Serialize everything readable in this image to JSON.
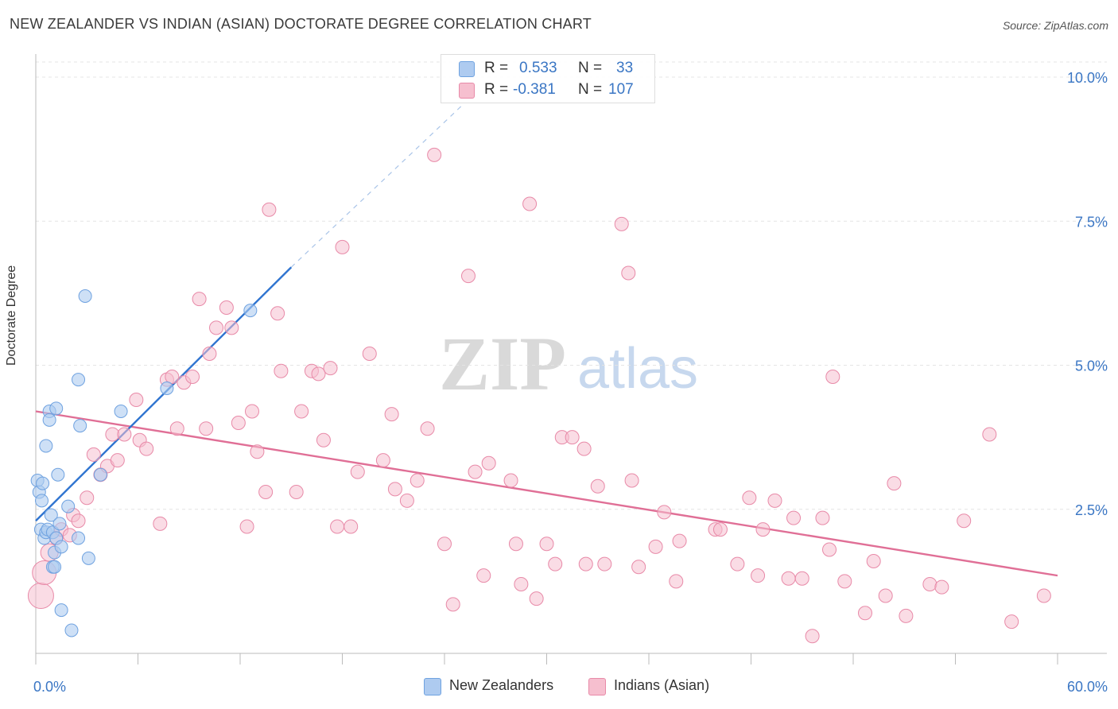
{
  "header": {
    "title": "NEW ZEALANDER VS INDIAN (ASIAN) DOCTORATE DEGREE CORRELATION CHART",
    "source": "Source: ZipAtlas.com"
  },
  "watermark": {
    "zip": "ZIP",
    "atlas": "atlas"
  },
  "legend_top": {
    "rows": [
      {
        "r_label": "R =",
        "r_value": "0.533",
        "n_label": "N =",
        "n_value": "33",
        "color": "#aecbf0"
      },
      {
        "r_label": "R =",
        "r_value": "-0.381",
        "n_label": "N =",
        "n_value": "107",
        "color": "#f6bfcf"
      }
    ]
  },
  "legend_bottom": {
    "items": [
      {
        "label": "New Zealanders",
        "color": "#aecbf0"
      },
      {
        "label": "Indians (Asian)",
        "color": "#f6bfcf"
      }
    ]
  },
  "chart_data": {
    "type": "scatter",
    "title": "NEW ZEALANDER VS INDIAN (ASIAN) DOCTORATE DEGREE CORRELATION CHART",
    "xlabel": "",
    "ylabel": "Doctorate Degree",
    "xlim": [
      0,
      60
    ],
    "ylim": [
      0,
      10.5
    ],
    "x_tick_labels": [
      "0.0%",
      "60.0%"
    ],
    "y_ticks": [
      2.5,
      5.0,
      7.5,
      10.0
    ],
    "y_tick_labels": [
      "2.5%",
      "5.0%",
      "7.5%",
      "10.0%"
    ],
    "grid": true,
    "series": [
      {
        "name": "New Zealanders",
        "color": "#6fa2e0",
        "fill": "#aecbf0",
        "points": [
          [
            0.1,
            3.0
          ],
          [
            0.2,
            2.8
          ],
          [
            0.3,
            2.15
          ],
          [
            0.35,
            2.65
          ],
          [
            0.4,
            2.95
          ],
          [
            0.5,
            2.0
          ],
          [
            0.6,
            3.6
          ],
          [
            0.6,
            2.1
          ],
          [
            0.7,
            2.15
          ],
          [
            0.8,
            4.2
          ],
          [
            0.8,
            4.05
          ],
          [
            0.9,
            2.4
          ],
          [
            1.0,
            2.1
          ],
          [
            1.0,
            1.5
          ],
          [
            1.1,
            1.5
          ],
          [
            1.1,
            1.75
          ],
          [
            1.2,
            4.25
          ],
          [
            1.2,
            2.0
          ],
          [
            1.3,
            3.1
          ],
          [
            1.4,
            2.25
          ],
          [
            1.5,
            1.85
          ],
          [
            1.5,
            0.75
          ],
          [
            1.9,
            2.55
          ],
          [
            2.1,
            0.4
          ],
          [
            2.5,
            4.75
          ],
          [
            2.5,
            2.0
          ],
          [
            2.6,
            3.95
          ],
          [
            2.9,
            6.2
          ],
          [
            3.1,
            1.65
          ],
          [
            3.8,
            3.1
          ],
          [
            5.0,
            4.2
          ],
          [
            7.7,
            4.6
          ],
          [
            12.6,
            5.95
          ]
        ],
        "trend": {
          "x": [
            0,
            15
          ],
          "y": [
            2.3,
            6.7
          ],
          "extended_to": [
            25,
            9.5
          ]
        }
      },
      {
        "name": "Indians (Asian)",
        "color": "#e06f96",
        "fill": "#f6bfcf",
        "points": [
          [
            0.3,
            1.0
          ],
          [
            0.5,
            1.4
          ],
          [
            0.8,
            1.75
          ],
          [
            1.2,
            2.0
          ],
          [
            1.5,
            2.15
          ],
          [
            2.0,
            2.05
          ],
          [
            2.2,
            2.4
          ],
          [
            2.5,
            2.3
          ],
          [
            3.0,
            2.7
          ],
          [
            3.4,
            3.45
          ],
          [
            3.8,
            3.1
          ],
          [
            4.2,
            3.25
          ],
          [
            4.5,
            3.8
          ],
          [
            4.8,
            3.35
          ],
          [
            5.2,
            3.8
          ],
          [
            5.9,
            4.4
          ],
          [
            6.1,
            3.7
          ],
          [
            6.5,
            3.55
          ],
          [
            7.3,
            2.25
          ],
          [
            7.7,
            4.75
          ],
          [
            8.0,
            4.8
          ],
          [
            8.3,
            3.9
          ],
          [
            8.7,
            4.7
          ],
          [
            9.2,
            4.8
          ],
          [
            9.6,
            6.15
          ],
          [
            10.0,
            3.9
          ],
          [
            10.2,
            5.2
          ],
          [
            10.6,
            5.65
          ],
          [
            11.2,
            6.0
          ],
          [
            11.5,
            5.65
          ],
          [
            11.9,
            4.0
          ],
          [
            12.4,
            2.2
          ],
          [
            12.7,
            4.2
          ],
          [
            13.0,
            3.5
          ],
          [
            13.5,
            2.8
          ],
          [
            13.7,
            7.7
          ],
          [
            14.2,
            5.9
          ],
          [
            14.4,
            4.9
          ],
          [
            15.3,
            2.8
          ],
          [
            15.6,
            4.2
          ],
          [
            16.2,
            4.9
          ],
          [
            16.6,
            4.85
          ],
          [
            16.9,
            3.7
          ],
          [
            17.3,
            4.95
          ],
          [
            17.7,
            2.2
          ],
          [
            18.0,
            7.05
          ],
          [
            18.5,
            2.2
          ],
          [
            18.9,
            3.15
          ],
          [
            19.6,
            5.2
          ],
          [
            20.4,
            3.35
          ],
          [
            20.9,
            4.15
          ],
          [
            21.1,
            2.85
          ],
          [
            21.8,
            2.65
          ],
          [
            22.4,
            3.0
          ],
          [
            23.0,
            3.9
          ],
          [
            23.4,
            8.65
          ],
          [
            24.0,
            1.9
          ],
          [
            24.5,
            0.85
          ],
          [
            25.4,
            6.55
          ],
          [
            25.8,
            3.15
          ],
          [
            26.3,
            1.35
          ],
          [
            26.6,
            3.3
          ],
          [
            27.9,
            3.0
          ],
          [
            28.2,
            1.9
          ],
          [
            28.5,
            1.2
          ],
          [
            29.0,
            7.8
          ],
          [
            29.4,
            0.95
          ],
          [
            30.0,
            1.9
          ],
          [
            30.5,
            1.55
          ],
          [
            30.9,
            3.75
          ],
          [
            31.5,
            3.75
          ],
          [
            32.2,
            3.55
          ],
          [
            32.3,
            1.55
          ],
          [
            33.0,
            2.9
          ],
          [
            33.4,
            1.55
          ],
          [
            34.4,
            7.45
          ],
          [
            34.8,
            6.6
          ],
          [
            35.4,
            1.5
          ],
          [
            36.4,
            1.85
          ],
          [
            36.9,
            2.45
          ],
          [
            37.6,
            1.25
          ],
          [
            37.8,
            1.95
          ],
          [
            39.9,
            2.15
          ],
          [
            40.2,
            2.15
          ],
          [
            41.2,
            1.55
          ],
          [
            41.9,
            2.7
          ],
          [
            42.4,
            1.35
          ],
          [
            42.7,
            2.15
          ],
          [
            43.4,
            2.65
          ],
          [
            44.2,
            1.3
          ],
          [
            44.5,
            2.35
          ],
          [
            45.0,
            1.3
          ],
          [
            45.6,
            0.3
          ],
          [
            46.2,
            2.35
          ],
          [
            46.6,
            1.8
          ],
          [
            46.8,
            4.8
          ],
          [
            47.5,
            1.25
          ],
          [
            48.7,
            0.7
          ],
          [
            49.2,
            1.6
          ],
          [
            49.9,
            1.0
          ],
          [
            50.4,
            2.95
          ],
          [
            51.1,
            0.65
          ],
          [
            52.5,
            1.2
          ],
          [
            53.2,
            1.15
          ],
          [
            54.5,
            2.3
          ],
          [
            56.0,
            3.8
          ],
          [
            57.3,
            0.55
          ],
          [
            59.2,
            1.0
          ],
          [
            35.0,
            3.0
          ]
        ],
        "trend": {
          "x": [
            0,
            60
          ],
          "y": [
            4.2,
            1.35
          ]
        }
      }
    ]
  }
}
